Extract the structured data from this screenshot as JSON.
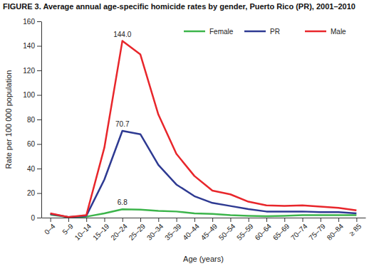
{
  "chart_data": {
    "type": "line",
    "title": "FIGURE 3. Average annual age-specific homicide rates by gender, Puerto Rico (PR), 2001–2010",
    "x_label": "Age (years)",
    "y_label": "Rate per 100 000 population",
    "categories": [
      "0–4",
      "5–9",
      "10–14",
      "15–19",
      "20–24",
      "25–29",
      "30–34",
      "35–39",
      "40–44",
      "45–49",
      "50–54",
      "55–59",
      "60–64",
      "65–69",
      "70–74",
      "75–79",
      "80–84",
      "≥ 85"
    ],
    "series": [
      {
        "name": "Female",
        "color": "#3cb44b",
        "values": [
          2.5,
          0.5,
          0.8,
          3.5,
          6.8,
          6.5,
          5.5,
          5,
          3.5,
          3,
          2,
          1.5,
          1.2,
          1.5,
          2,
          2,
          2,
          2
        ],
        "value_labels": [
          null,
          null,
          null,
          null,
          "6.8",
          null,
          null,
          null,
          null,
          null,
          null,
          null,
          null,
          null,
          null,
          null,
          null,
          null
        ]
      },
      {
        "name": "PR",
        "color": "#2e3a92",
        "values": [
          3,
          0.5,
          1.5,
          31,
          70.7,
          68,
          43,
          27,
          17.5,
          12,
          9.5,
          7,
          5,
          5,
          5,
          4.5,
          4.5,
          3.5
        ],
        "value_labels": [
          null,
          null,
          null,
          null,
          "70.7",
          null,
          null,
          null,
          null,
          null,
          null,
          null,
          null,
          null,
          null,
          null,
          null,
          null
        ]
      },
      {
        "name": "Male",
        "color": "#e8262b",
        "values": [
          3.5,
          0.5,
          2,
          57,
          144.0,
          133,
          84,
          52,
          34,
          22,
          19,
          13,
          10,
          9.5,
          10,
          9,
          8,
          6
        ],
        "value_labels": [
          null,
          null,
          null,
          null,
          "144.0",
          null,
          null,
          null,
          null,
          null,
          null,
          null,
          null,
          null,
          null,
          null,
          null,
          null
        ]
      }
    ],
    "ylim": [
      0,
      160
    ],
    "yticks": [
      0,
      20,
      40,
      60,
      80,
      100,
      120,
      140,
      160
    ],
    "grid": false,
    "legend": "top",
    "data_labels": true
  }
}
